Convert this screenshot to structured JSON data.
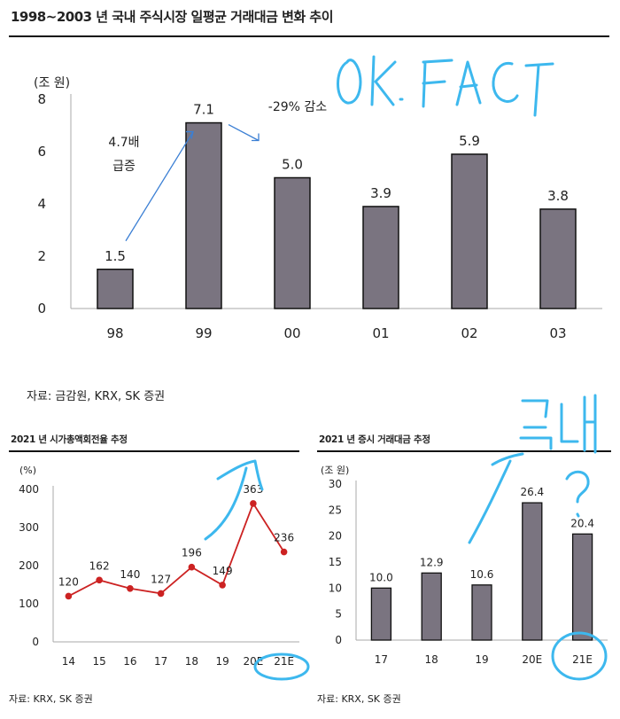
{
  "colors": {
    "bar": "#7a7480",
    "line": "#cc2222",
    "arrow": "#3b7fd4",
    "scribble": "#3db8ee",
    "axis": "#aaaaaa"
  },
  "chart_data": [
    {
      "type": "bar",
      "title": "1998~2003 년 국내 주식시장 일평균 거래대금 변화 추이",
      "ylabel": "(조 원)",
      "ylim": [
        0,
        8
      ],
      "yticks": [
        "0",
        "2",
        "4",
        "6",
        "8"
      ],
      "categories": [
        "98",
        "99",
        "00",
        "01",
        "02",
        "03"
      ],
      "values": [
        1.5,
        7.1,
        5.0,
        3.9,
        5.9,
        3.8
      ],
      "data_labels": [
        "1.5",
        "7.1",
        "5.0",
        "3.9",
        "5.9",
        "3.8"
      ],
      "annotations": [
        "4.7배",
        "급증",
        "-29% 감소"
      ],
      "source": "자료: 금감원, KRX, SK 증권",
      "handwriting": "OK. FACT"
    },
    {
      "type": "line",
      "title": "2021 년 시가총액회전율 추정",
      "ylabel": "(%)",
      "ylim": [
        0,
        400
      ],
      "yticks": [
        "0",
        "100",
        "200",
        "300",
        "400"
      ],
      "categories": [
        "14",
        "15",
        "16",
        "17",
        "18",
        "19",
        "20E",
        "21E"
      ],
      "values": [
        120,
        162,
        140,
        127,
        196,
        149,
        363,
        236
      ],
      "data_labels": [
        "120",
        "162",
        "140",
        "127",
        "196",
        "149",
        "363",
        "236"
      ],
      "source": "자료: KRX, SK 증권"
    },
    {
      "type": "bar",
      "title": "2021 년 증시 거래대금 추정",
      "ylabel": "(조 원)",
      "ylim": [
        0,
        30
      ],
      "yticks": [
        "0",
        "5",
        "10",
        "15",
        "20",
        "25",
        "30"
      ],
      "categories": [
        "17",
        "18",
        "19",
        "20E",
        "21E"
      ],
      "values": [
        10.0,
        12.9,
        10.6,
        26.4,
        20.4
      ],
      "data_labels": [
        "10.0",
        "12.9",
        "10.6",
        "26.4",
        "20.4"
      ],
      "source": "자료: KRX, SK 증권",
      "handwriting": "근데 ?"
    }
  ]
}
